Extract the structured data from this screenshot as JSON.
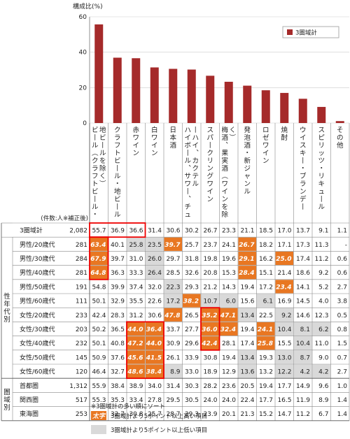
{
  "chart_data": {
    "type": "bar",
    "ylabel": "構成比(%)",
    "ylim": [
      0,
      60
    ],
    "yticks": [
      0,
      20,
      40,
      60
    ],
    "legend": "3圏域計",
    "bar_color": "#a52a2a",
    "categories": [
      "ビール(クラフトビール・地ビールを除く)",
      "クラフトビール・地ビール",
      "赤ワイン",
      "白ワイン",
      "日本酒",
      "ハイボール、サワー、チューハイ、カクテル",
      "スパークリングワイン",
      "梅酒、果実酒(ワインを除く)",
      "発泡酒・新ジャンル",
      "ロゼワイン",
      "焼酎",
      "ウイスキー・ブランデー",
      "スピリッツ・リキュール",
      "その他"
    ],
    "values": [
      55.7,
      36.9,
      36.6,
      31.4,
      30.6,
      30.2,
      26.7,
      23.3,
      21.1,
      18.5,
      17.0,
      13.7,
      9.1,
      1.1
    ],
    "table_header": "(件数:人※補正後)",
    "rows": [
      {
        "group": "",
        "label": "3圏域計",
        "n": "2,082",
        "values": [
          "55.7",
          "36.9",
          "36.6",
          "31.4",
          "30.6",
          "30.2",
          "26.7",
          "23.3",
          "21.1",
          "18.5",
          "17.0",
          "13.7",
          "9.1",
          "1.1"
        ]
      },
      {
        "group": "性年代別",
        "label": "男性/20歳代",
        "n": "281",
        "values": [
          "63.4",
          "40.1",
          "25.8",
          "23.5",
          "39.7",
          "25.7",
          "23.7",
          "24.1",
          "26.7",
          "18.2",
          "17.1",
          "17.3",
          "11.3",
          "-"
        ]
      },
      {
        "group": "性年代別",
        "label": "男性/30歳代",
        "n": "284",
        "values": [
          "67.9",
          "39.7",
          "31.0",
          "26.0",
          "29.7",
          "31.8",
          "19.8",
          "19.6",
          "29.1",
          "16.2",
          "25.0",
          "17.4",
          "11.2",
          "0.6"
        ]
      },
      {
        "group": "性年代別",
        "label": "男性/40歳代",
        "n": "281",
        "values": [
          "64.8",
          "36.3",
          "33.3",
          "26.4",
          "28.5",
          "32.6",
          "20.8",
          "15.3",
          "28.4",
          "15.1",
          "21.4",
          "18.6",
          "9.2",
          "0.6"
        ]
      },
      {
        "group": "性年代別",
        "label": "男性/50歳代",
        "n": "191",
        "values": [
          "54.8",
          "39.9",
          "37.4",
          "32.0",
          "22.3",
          "29.3",
          "21.2",
          "14.3",
          "19.4",
          "17.2",
          "23.4",
          "14.1",
          "5.2",
          "2.7"
        ]
      },
      {
        "group": "性年代別",
        "label": "男性/60歳代",
        "n": "111",
        "values": [
          "50.1",
          "32.9",
          "35.5",
          "22.6",
          "17.2",
          "38.2",
          "10.7",
          "6.0",
          "15.6",
          "6.1",
          "16.9",
          "14.5",
          "4.0",
          "3.8"
        ]
      },
      {
        "group": "性年代別",
        "label": "女性/20歳代",
        "n": "233",
        "values": [
          "42.4",
          "28.3",
          "31.2",
          "30.6",
          "47.8",
          "26.5",
          "35.2",
          "47.1",
          "13.4",
          "22.5",
          "9.2",
          "14.6",
          "12.3",
          "0.5"
        ]
      },
      {
        "group": "性年代別",
        "label": "女性/30歳代",
        "n": "203",
        "values": [
          "50.2",
          "36.5",
          "44.0",
          "36.4",
          "33.7",
          "27.7",
          "36.0",
          "32.4",
          "19.4",
          "24.1",
          "10.4",
          "8.1",
          "6.2",
          "0.8"
        ]
      },
      {
        "group": "性年代別",
        "label": "女性/40歳代",
        "n": "232",
        "values": [
          "50.1",
          "40.8",
          "47.2",
          "44.0",
          "30.9",
          "29.6",
          "42.4",
          "28.1",
          "17.4",
          "25.8",
          "15.5",
          "10.4",
          "11.0",
          "1.5"
        ]
      },
      {
        "group": "性年代別",
        "label": "女性/50歳代",
        "n": "145",
        "values": [
          "50.9",
          "37.6",
          "45.6",
          "41.5",
          "26.1",
          "33.9",
          "30.8",
          "19.4",
          "13.4",
          "19.3",
          "13.0",
          "8.7",
          "9.0",
          "0.7"
        ]
      },
      {
        "group": "性年代別",
        "label": "女性/60歳代",
        "n": "120",
        "values": [
          "46.4",
          "32.7",
          "48.6",
          "38.4",
          "8.9",
          "33.0",
          "18.9",
          "12.9",
          "13.6",
          "13.2",
          "12.2",
          "4.2",
          "4.2",
          "2.7"
        ]
      },
      {
        "group": "圏域別",
        "label": "首都圏",
        "n": "1,312",
        "values": [
          "55.9",
          "38.4",
          "38.9",
          "34.0",
          "31.4",
          "30.3",
          "28.2",
          "23.6",
          "20.5",
          "19.4",
          "17.7",
          "14.9",
          "9.6",
          "1.0"
        ]
      },
      {
        "group": "圏域別",
        "label": "関西圏",
        "n": "517",
        "values": [
          "55.3",
          "35.3",
          "33.4",
          "27.8",
          "29.5",
          "30.5",
          "24.0",
          "24.0",
          "22.4",
          "17.7",
          "16.5",
          "11.9",
          "8.9",
          "1.4"
        ]
      },
      {
        "group": "圏域別",
        "label": "東海圏",
        "n": "253",
        "values": [
          "55.8",
          "32.7",
          "30.8",
          "25.7",
          "28.7",
          "29.3",
          "23.9",
          "20.1",
          "21.3",
          "15.2",
          "14.7",
          "11.2",
          "6.7",
          "1.4"
        ]
      }
    ],
    "highlight_high": [
      [
        1,
        0
      ],
      [
        2,
        0
      ],
      [
        3,
        0
      ],
      [
        1,
        4
      ],
      [
        1,
        8
      ],
      [
        2,
        8
      ],
      [
        3,
        8
      ],
      [
        2,
        10
      ],
      [
        4,
        10
      ],
      [
        5,
        5
      ],
      [
        6,
        4
      ],
      [
        6,
        6
      ],
      [
        6,
        7
      ],
      [
        7,
        2
      ],
      [
        7,
        3
      ],
      [
        7,
        6
      ],
      [
        7,
        7
      ],
      [
        7,
        9
      ],
      [
        8,
        2
      ],
      [
        8,
        3
      ],
      [
        8,
        6
      ],
      [
        8,
        9
      ],
      [
        9,
        2
      ],
      [
        9,
        3
      ],
      [
        10,
        2
      ],
      [
        10,
        3
      ]
    ],
    "highlight_low": [
      [
        1,
        2
      ],
      [
        1,
        3
      ],
      [
        2,
        3
      ],
      [
        3,
        3
      ],
      [
        4,
        4
      ],
      [
        5,
        4
      ],
      [
        5,
        6
      ],
      [
        5,
        7
      ],
      [
        5,
        9
      ],
      [
        6,
        8
      ],
      [
        6,
        10
      ],
      [
        7,
        10
      ],
      [
        7,
        11
      ],
      [
        7,
        12
      ],
      [
        8,
        11
      ],
      [
        9,
        8
      ],
      [
        9,
        10
      ],
      [
        9,
        11
      ],
      [
        10,
        4
      ],
      [
        10,
        8
      ],
      [
        10,
        10
      ],
      [
        10,
        11
      ],
      [
        10,
        12
      ]
    ],
    "notes": [
      "※3圏域計の多い順にソート",
      "太字",
      "3圏域計より5ポイント以上高い項目",
      "3圏域計より5ポイント以上低い項目"
    ]
  }
}
